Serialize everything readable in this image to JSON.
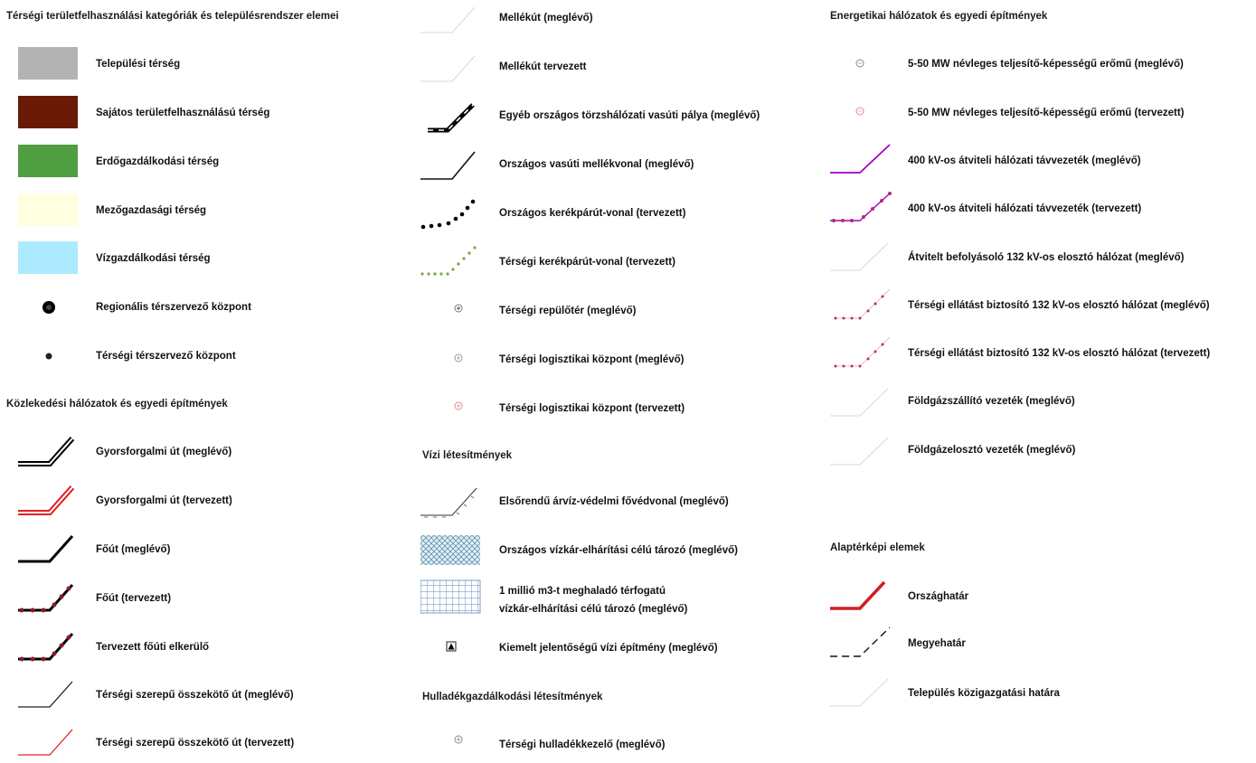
{
  "col1": {
    "heading1": "Térségi területfelhasználási kategóriák és településrendszer elemei",
    "land_use": [
      {
        "label": "Települési térség",
        "color": "#b3b3b3"
      },
      {
        "label": "Sajátos területfelhasználású térség",
        "color": "#6b1a06"
      },
      {
        "label": "Erdőgazdálkodási térség",
        "color": "#4f9e42"
      },
      {
        "label": "Mezőgazdasági térség",
        "color": "#ffffe0"
      },
      {
        "label": "Vízgazdálkodási térség",
        "color": "#aeeaff"
      }
    ],
    "centers": [
      {
        "label": "Regionális térszervező központ",
        "icon": "large-dot-icon"
      },
      {
        "label": "Térségi térszervező központ",
        "icon": "small-dot-icon"
      }
    ],
    "heading2": "Közlekedési hálózatok és egyedi építmények",
    "roads": [
      {
        "label": "Gyorsforgalmi út (meglévő)",
        "icon": "double-line-black-icon"
      },
      {
        "label": "Gyorsforgalmi út (tervezett)",
        "icon": "double-line-red-icon"
      },
      {
        "label": "Főút (meglévő)",
        "icon": "thick-line-black-icon"
      },
      {
        "label": "Főút (tervezett)",
        "icon": "dotted-thick-line-icon"
      },
      {
        "label": "Tervezett főúti elkerülő",
        "icon": "dotted-thick-line-icon"
      },
      {
        "label": "Térségi szerepű összekötő út (meglévő)",
        "icon": "thin-line-black-icon"
      },
      {
        "label": "Térségi szerepű összekötő út (tervezett)",
        "icon": "thin-line-red-icon"
      }
    ]
  },
  "col2": {
    "transport": [
      {
        "label": "Mellékút (meglévő)",
        "icon": "faint-line-icon"
      },
      {
        "label": "Mellékút tervezett",
        "icon": "faint-line-icon"
      },
      {
        "label": "Egyéb országos törzshálózati vasúti pálya (meglévő)",
        "icon": "railway-main-icon"
      },
      {
        "label": "Országos vasúti mellékvonal (meglévő)",
        "icon": "railway-line-icon"
      },
      {
        "label": "Országos kerékpárút-vonal (tervezett)",
        "icon": "dotted-black-line-icon"
      },
      {
        "label": "Térségi kerékpárút-vonal (tervezett)",
        "icon": "dotted-green-line-icon"
      },
      {
        "label": "Térségi repülőtér (meglévő)",
        "icon": "airport-icon"
      },
      {
        "label": "Térségi logisztikai központ (meglévő)",
        "icon": "logistics-center-icon"
      },
      {
        "label": "Térségi logisztikai központ (tervezett)",
        "icon": "logistics-center-planned-icon"
      }
    ],
    "heading_water": "Vízi létesítmények",
    "water": [
      {
        "label": "Elsőrendű árvíz-védelmi fővédvonal (meglévő)",
        "icon": "flood-dike-icon"
      },
      {
        "label": "Országos vízkár-elhárítási célú tározó (meglévő)",
        "icon": "crosshatch-icon"
      },
      {
        "label_line1": "1 millió m3-t meghaladó térfogatú",
        "label_line2": "vízkár-elhárítási célú tározó (meglévő)",
        "icon": "grid-pattern-icon"
      },
      {
        "label": "Kiemelt jelentőségű vízi építmény (meglévő)",
        "icon": "triangle-square-icon"
      }
    ],
    "heading_waste": "Hulladékgazdálkodási létesítmények",
    "waste": [
      {
        "label": "Térségi hulladékkezelő (meglévő)",
        "icon": "waste-facility-icon"
      }
    ]
  },
  "col3": {
    "heading_energy": "Energetikai hálózatok és egyedi építmények",
    "energy": [
      {
        "label": "5-50 MW névleges teljesítő-képességű erőmű (meglévő)",
        "icon": "power-plant-icon"
      },
      {
        "label": "5-50 MW névleges teljesítő-képességű erőmű (tervezett)",
        "icon": "power-plant-planned-icon"
      },
      {
        "label": "400 kV-os átviteli hálózati távvezeték (meglévő)",
        "icon": "magenta-line-icon"
      },
      {
        "label": "400 kV-os átviteli hálózati távvezeték (tervezett)",
        "icon": "magenta-dotted-line-icon"
      },
      {
        "label": "Átvitelt befolyásoló 132 kV-os elosztó hálózat (meglévő)",
        "icon": "faint-line-icon"
      },
      {
        "label": "Térségi ellátást biztosító 132 kV-os elosztó hálózat (meglévő)",
        "icon": "pink-dotted-line-icon"
      },
      {
        "label": "Térségi ellátást biztosító 132 kV-os elosztó hálózat (tervezett)",
        "icon": "pink-dotted-line-icon"
      },
      {
        "label": "Földgázszállító vezeték (meglévő)",
        "icon": "faint-line-icon"
      },
      {
        "label": "Földgázelosztó vezeték (meglévő)",
        "icon": "faint-line-icon"
      }
    ],
    "heading_base": "Alaptérképi elemek",
    "base": [
      {
        "label": "Országhatár",
        "icon": "red-thick-line-icon"
      },
      {
        "label": "Megyehatár",
        "icon": "dashed-line-icon"
      },
      {
        "label": "Település közigazgatási határa",
        "icon": "faint-line-icon"
      }
    ]
  }
}
